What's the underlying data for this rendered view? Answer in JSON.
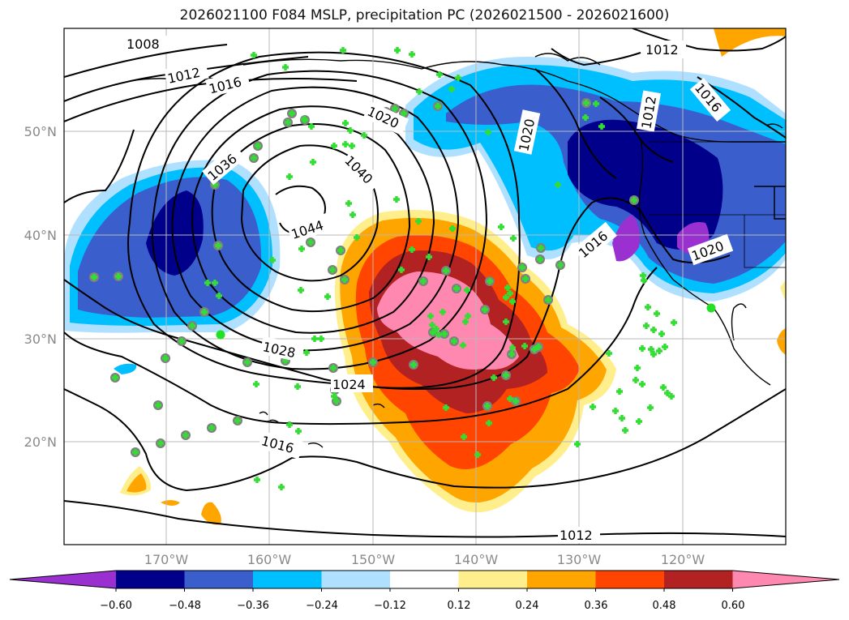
{
  "title": "2026021100 F084 MSLP, precipitation PC (2026021500 - 2026021600)",
  "map": {
    "lat_labels": [
      "50°N",
      "40°N",
      "30°N",
      "20°N"
    ],
    "lon_labels": [
      "170°W",
      "160°W",
      "150°W",
      "140°W",
      "130°W",
      "120°W"
    ],
    "isobar_labels": [
      "1008",
      "1012",
      "1016",
      "1020",
      "1024",
      "1028",
      "1036",
      "1040",
      "1044",
      "1012",
      "1016",
      "1020",
      "1012",
      "1016",
      "1020",
      "1016",
      "1012"
    ]
  },
  "colorbar": {
    "colors": [
      "#9b30d0",
      "#00008b",
      "#3a5fcd",
      "#00bfff",
      "#b0e0ff",
      "#ffffff",
      "#ffee8c",
      "#ffa500",
      "#ff4500",
      "#b22222",
      "#ff88b0"
    ],
    "ticks": [
      "−0.60",
      "−0.48",
      "−0.36",
      "−0.24",
      "−0.12",
      "0.12",
      "0.24",
      "0.36",
      "0.48",
      "0.60"
    ]
  },
  "palette": {
    "marker_fill": "#33dd33",
    "marker_edge": "#808080",
    "isobar": "#000000",
    "grid": "#b8b8b8"
  }
}
